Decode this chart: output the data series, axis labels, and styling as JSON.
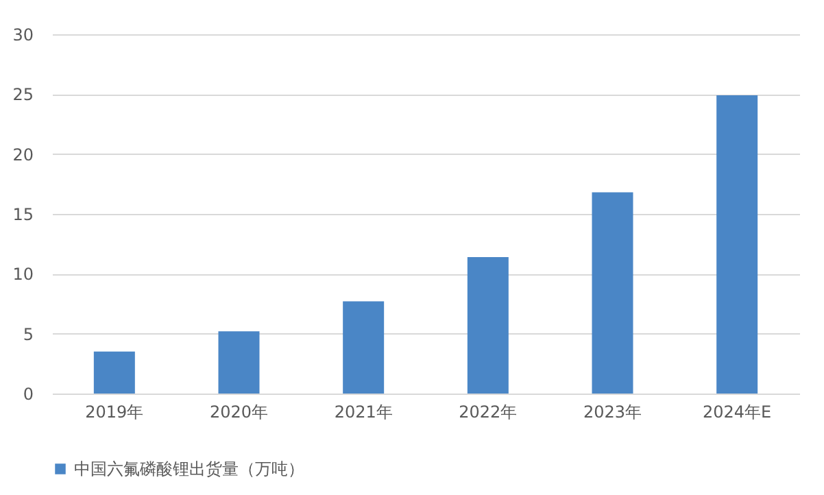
{
  "chart_data": {
    "type": "bar",
    "categories": [
      "2019年",
      "2020年",
      "2021年",
      "2022年",
      "2023年",
      "2024年E"
    ],
    "series": [
      {
        "name": "中国六氟磷酸锂出货量（万吨）",
        "color": "#4a86c6",
        "values": [
          3.5,
          5.2,
          7.7,
          11.4,
          16.8,
          24.9
        ]
      }
    ],
    "ylim": [
      0,
      30
    ],
    "yticks": [
      0,
      5,
      10,
      15,
      20,
      25,
      30
    ],
    "grid": "y",
    "legend": "bottom"
  }
}
